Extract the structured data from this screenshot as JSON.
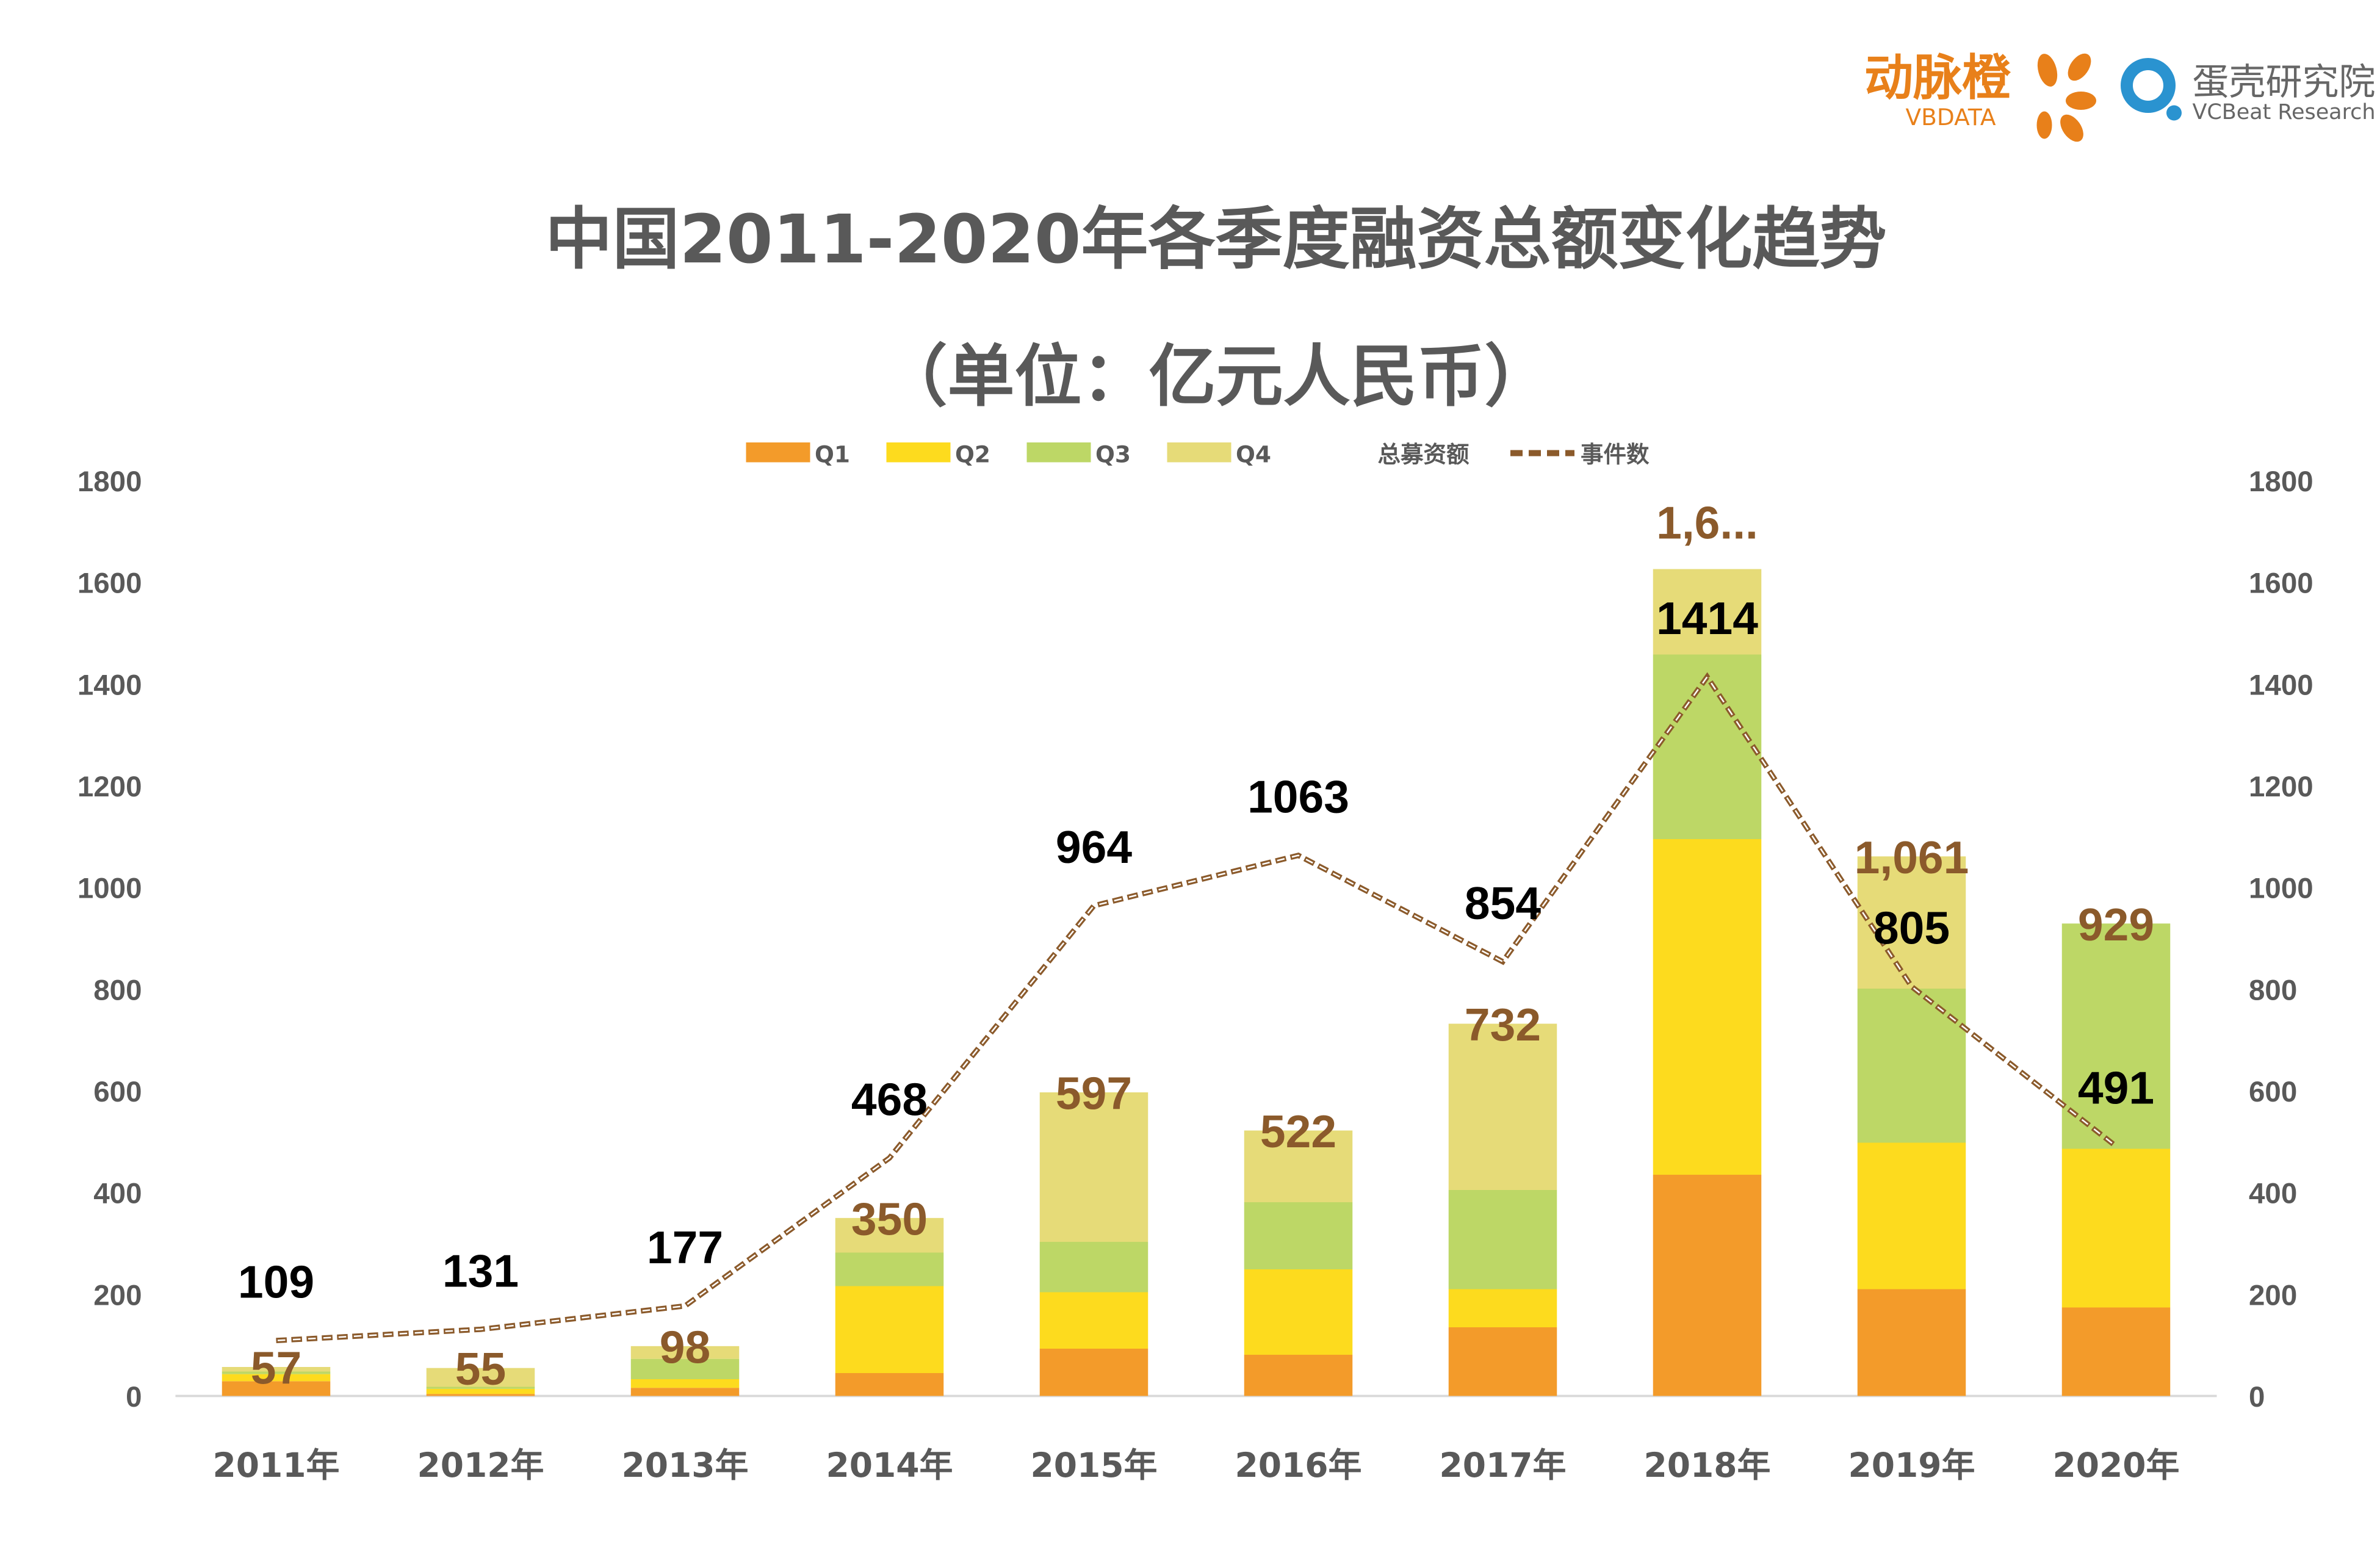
{
  "logos": {
    "vbdata_cn": "动脉橙",
    "vbdata_en": "VBDATA",
    "vcbeat_cn": "蛋壳研究院",
    "vcbeat_en": "VCBeat Research"
  },
  "chart_data": {
    "type": "bar",
    "stacked": true,
    "title": "中国2011-2020年各季度融资总额变化趋势",
    "subtitle": "（单位：亿元人民币）",
    "categories": [
      "2011年",
      "2012年",
      "2013年",
      "2014年",
      "2015年",
      "2016年",
      "2017年",
      "2018年",
      "2019年",
      "2020年"
    ],
    "ylim": [
      0,
      1800
    ],
    "y2lim": [
      0,
      1800
    ],
    "yticks": [
      "0",
      "200",
      "400",
      "600",
      "800",
      "1000",
      "1200",
      "1400",
      "1600",
      "1800"
    ],
    "grid": false,
    "legend_position": "top",
    "series": [
      {
        "name": "Q1",
        "color": "#F39B2A",
        "values": [
          29,
          4,
          16,
          45,
          93,
          81,
          135,
          435,
          210,
          174
        ]
      },
      {
        "name": "Q2",
        "color": "#FDDB1E",
        "values": [
          14,
          10,
          17,
          171,
          111,
          168,
          75,
          660,
          288,
          312
        ]
      },
      {
        "name": "Q3",
        "color": "#BDD766",
        "values": [
          5,
          4,
          40,
          66,
          99,
          132,
          195,
          363,
          303,
          443
        ]
      },
      {
        "name": "Q4",
        "color": "#E6DB78",
        "values": [
          9,
          37,
          25,
          68,
          294,
          141,
          327,
          168,
          260,
          0
        ]
      }
    ],
    "totals": {
      "name": "总募资额",
      "color": "#8B5A2B",
      "labels": [
        "57",
        "55",
        "98",
        "350",
        "597",
        "522",
        "732",
        "1,6...",
        "1,061",
        "929"
      ]
    },
    "line": {
      "name": "事件数",
      "color": "#8B5A2B",
      "axis": "secondary",
      "values": [
        109,
        131,
        177,
        468,
        964,
        1063,
        854,
        1414,
        805,
        491
      ]
    }
  }
}
